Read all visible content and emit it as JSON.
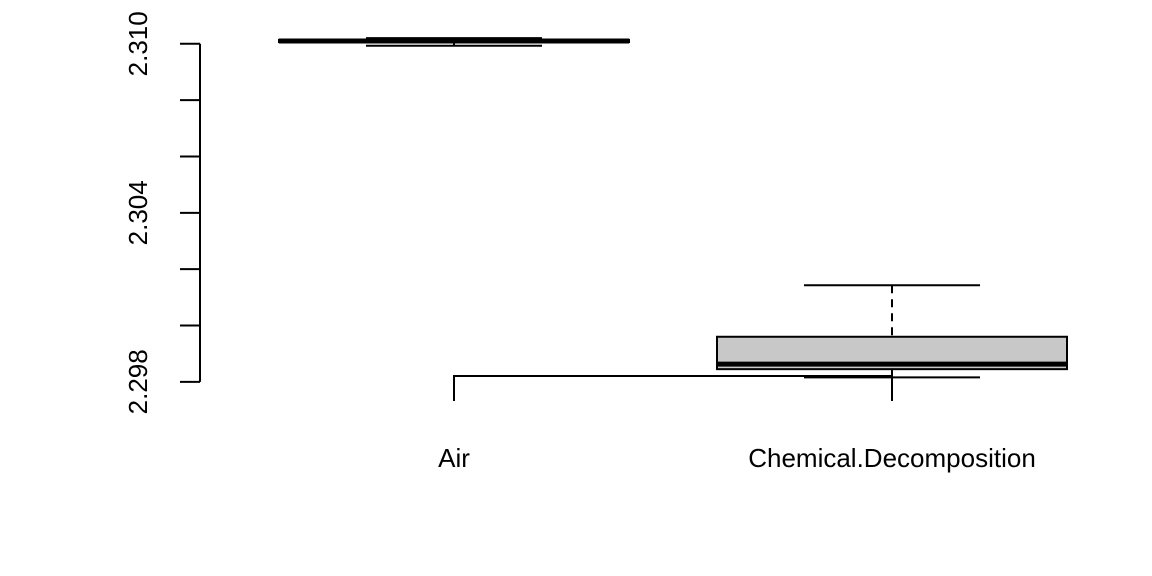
{
  "chart_data": {
    "type": "boxplot",
    "title": "",
    "xlabel": "",
    "ylabel": "",
    "categories": [
      "Air",
      "Chemical.Decomposition"
    ],
    "boxes": [
      {
        "category": "Air",
        "min": 2.30993,
        "q1": 2.31006,
        "median": 2.3101,
        "q3": 2.31014,
        "max": 2.3102,
        "fill": "#ffffff"
      },
      {
        "category": "Chemical.Decomposition",
        "min": 2.29816,
        "q1": 2.29845,
        "median": 2.29863,
        "q3": 2.2996,
        "max": 2.30143,
        "fill": "#c8c8c8"
      }
    ],
    "y_axis": {
      "ticks": [
        2.298,
        2.3,
        2.302,
        2.304,
        2.306,
        2.308,
        2.31
      ],
      "tick_labels": [
        "2.298",
        "",
        "",
        "2.304",
        "",
        "",
        "2.310"
      ],
      "range": [
        2.297,
        2.3112
      ]
    },
    "significance_bracket": {
      "from": "Air",
      "to": "Chemical.Decomposition",
      "label": ""
    },
    "grid": false,
    "legend": "none"
  }
}
